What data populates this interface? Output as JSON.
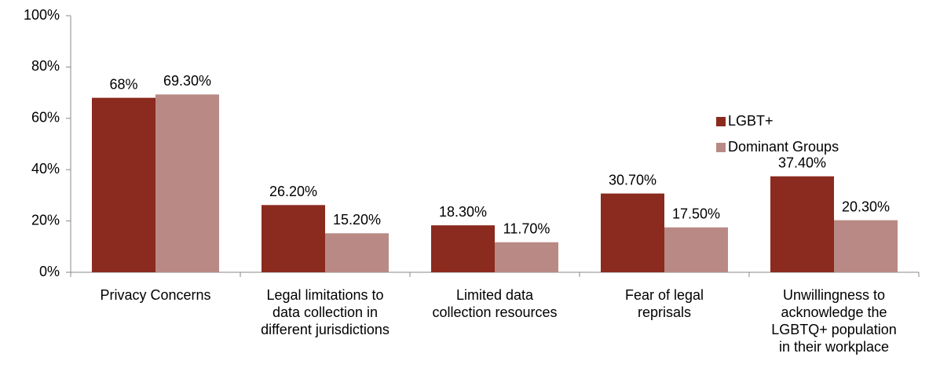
{
  "chart_data": {
    "type": "bar",
    "categories": [
      "Privacy Concerns",
      "Legal limitations to\ndata collection in\ndifferent jurisdictions",
      "Limited data\ncollection resources",
      "Fear of legal\nreprisals",
      "Unwillingness to\nacknowledge the\nLGBTQ+ population\nin their workplace"
    ],
    "series": [
      {
        "name": "LGBT+",
        "color": "#8b2a1e",
        "values": [
          68,
          26.2,
          18.3,
          30.7,
          37.4
        ],
        "value_labels": [
          "68%",
          "26.20%",
          "18.30%",
          "30.70%",
          "37.40%"
        ]
      },
      {
        "name": "Dominant Groups",
        "color": "#b98a85",
        "values": [
          69.3,
          15.2,
          11.7,
          17.5,
          20.3
        ],
        "value_labels": [
          "69.30%",
          "15.20%",
          "11.70%",
          "17.50%",
          "20.30%"
        ]
      }
    ],
    "ylim": [
      0,
      100
    ],
    "yticks": [
      {
        "value": 0,
        "label": "0%"
      },
      {
        "value": 20,
        "label": "20%"
      },
      {
        "value": 40,
        "label": "40%"
      },
      {
        "value": 60,
        "label": "60%"
      },
      {
        "value": 80,
        "label": "80%"
      },
      {
        "value": 100,
        "label": "100%"
      }
    ],
    "grid": false,
    "legend": "right"
  }
}
